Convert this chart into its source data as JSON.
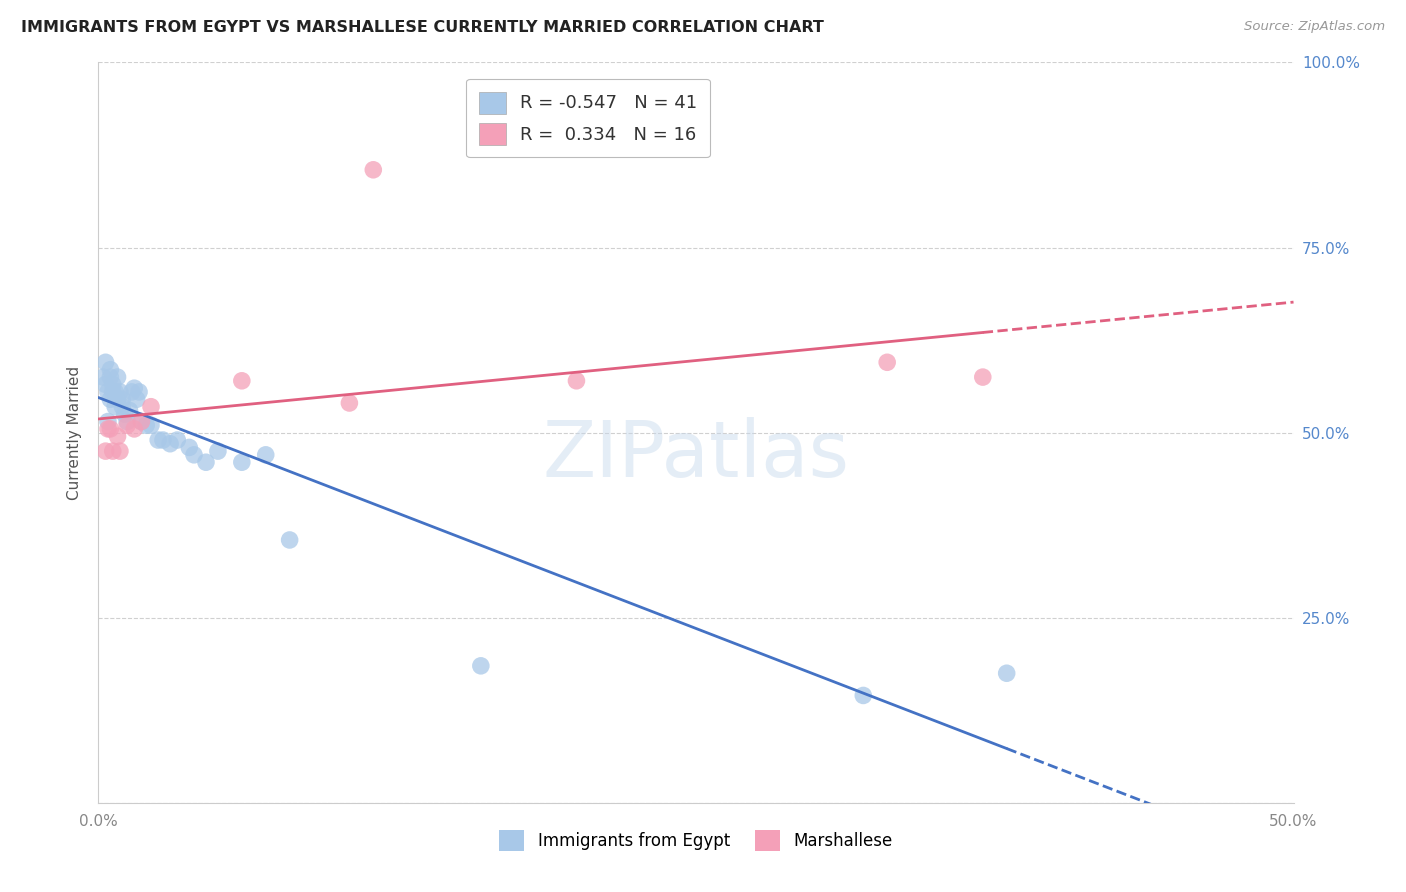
{
  "title": "IMMIGRANTS FROM EGYPT VS MARSHALLESE CURRENTLY MARRIED CORRELATION CHART",
  "source": "Source: ZipAtlas.com",
  "ylabel": "Currently Married",
  "xlim": [
    0.0,
    0.5
  ],
  "ylim": [
    0.0,
    1.0
  ],
  "egypt_R": -0.547,
  "egypt_N": 41,
  "marsh_R": 0.334,
  "marsh_N": 16,
  "egypt_color": "#a8c8e8",
  "marsh_color": "#f4a0b8",
  "egypt_line_color": "#4472c4",
  "marsh_line_color": "#e06080",
  "watermark": "ZIPatlas",
  "egypt_x": [
    0.002,
    0.003,
    0.003,
    0.004,
    0.004,
    0.005,
    0.005,
    0.005,
    0.006,
    0.006,
    0.007,
    0.007,
    0.008,
    0.008,
    0.009,
    0.01,
    0.01,
    0.011,
    0.012,
    0.013,
    0.014,
    0.015,
    0.016,
    0.017,
    0.018,
    0.02,
    0.022,
    0.025,
    0.027,
    0.03,
    0.033,
    0.038,
    0.04,
    0.045,
    0.05,
    0.06,
    0.07,
    0.08,
    0.16,
    0.32,
    0.38
  ],
  "egypt_y": [
    0.575,
    0.595,
    0.565,
    0.555,
    0.515,
    0.545,
    0.575,
    0.585,
    0.555,
    0.565,
    0.535,
    0.555,
    0.545,
    0.575,
    0.555,
    0.545,
    0.535,
    0.525,
    0.515,
    0.53,
    0.555,
    0.56,
    0.545,
    0.555,
    0.515,
    0.51,
    0.51,
    0.49,
    0.49,
    0.485,
    0.49,
    0.48,
    0.47,
    0.46,
    0.475,
    0.46,
    0.47,
    0.355,
    0.185,
    0.145,
    0.175
  ],
  "marsh_x": [
    0.003,
    0.004,
    0.005,
    0.006,
    0.008,
    0.009,
    0.012,
    0.015,
    0.018,
    0.022,
    0.06,
    0.105,
    0.115,
    0.2,
    0.33,
    0.37
  ],
  "marsh_y": [
    0.475,
    0.505,
    0.505,
    0.475,
    0.495,
    0.475,
    0.51,
    0.505,
    0.515,
    0.535,
    0.57,
    0.54,
    0.855,
    0.57,
    0.595,
    0.575
  ],
  "yticks": [
    0.0,
    0.25,
    0.5,
    0.75,
    1.0
  ],
  "ytick_labels_right": [
    "",
    "25.0%",
    "50.0%",
    "75.0%",
    "100.0%"
  ],
  "xticks": [
    0.0,
    0.1,
    0.2,
    0.3,
    0.4,
    0.5
  ],
  "xtick_labels": [
    "0.0%",
    "",
    "",
    "",
    "",
    "50.0%"
  ],
  "grid_color": "#d0d0d0",
  "background_color": "#ffffff",
  "right_tick_color": "#5588cc"
}
